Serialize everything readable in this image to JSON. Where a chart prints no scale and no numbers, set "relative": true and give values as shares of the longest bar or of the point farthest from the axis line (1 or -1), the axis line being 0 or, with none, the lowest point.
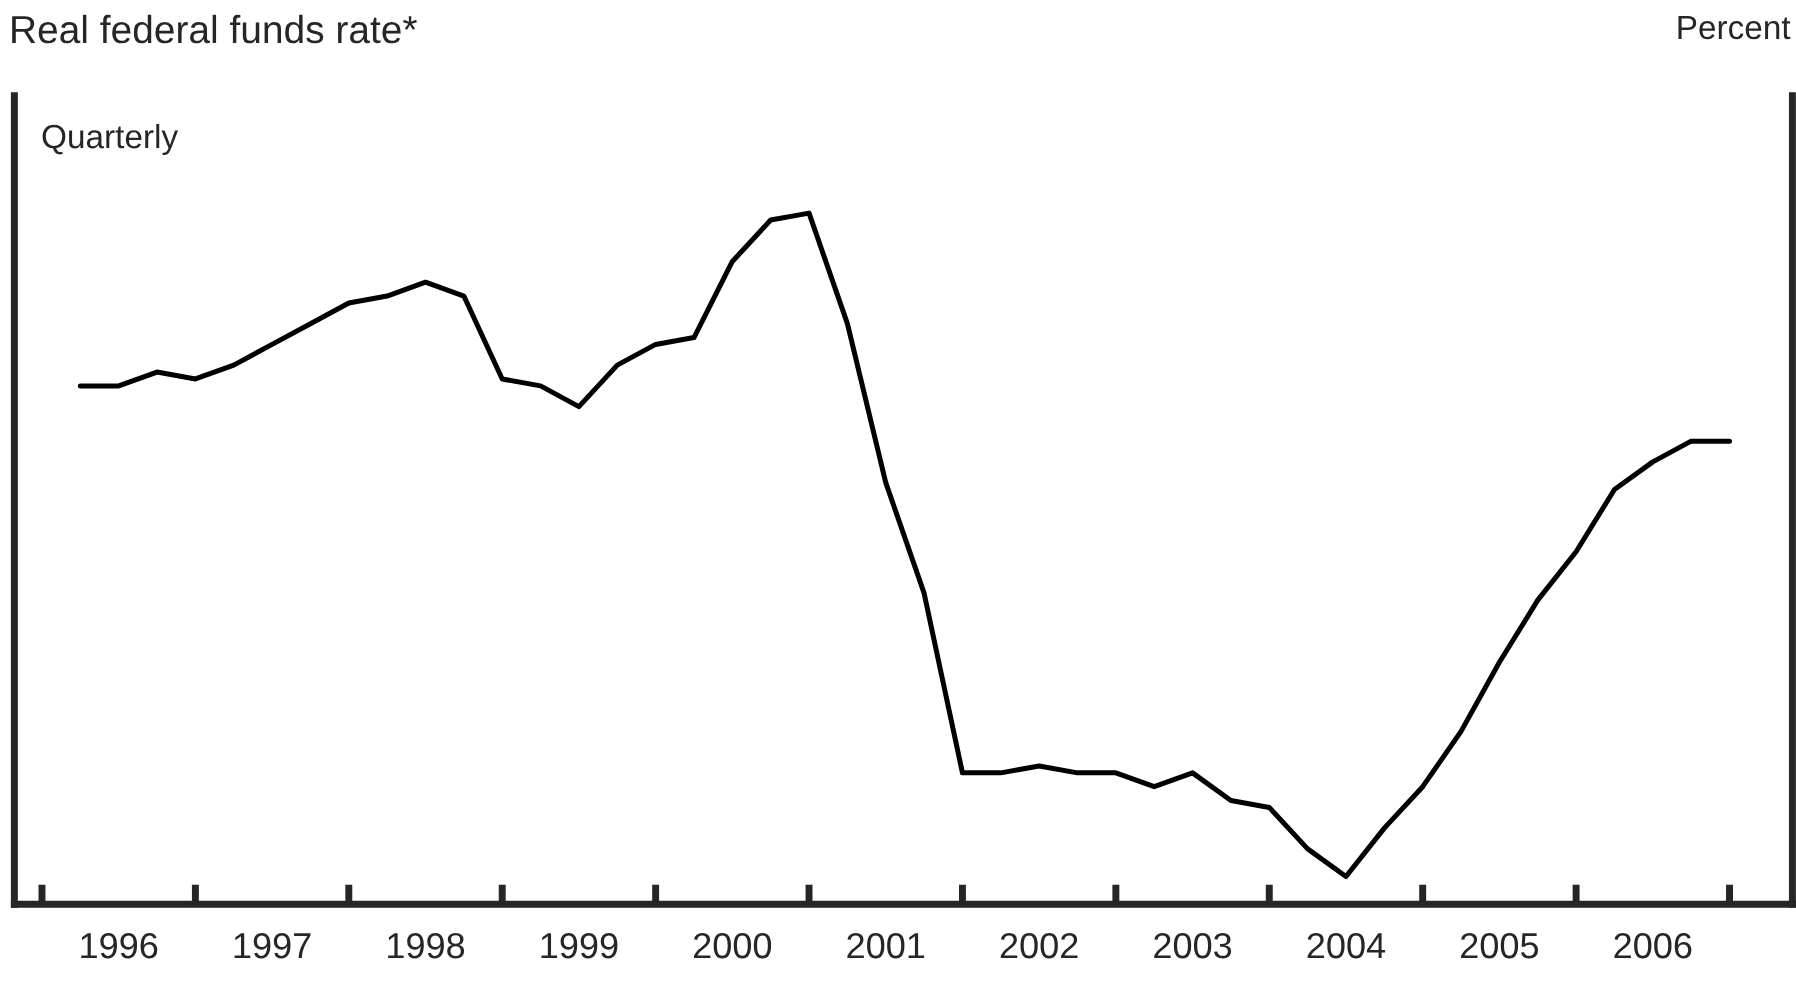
{
  "chart_data": {
    "type": "line",
    "title": "Real federal funds rate*",
    "annotations": [
      "Percent",
      "Quarterly"
    ],
    "relative": true,
    "grid": false,
    "legend": false,
    "x": [
      1996.25,
      1996.5,
      1996.75,
      1997,
      1997.25,
      1997.5,
      1997.75,
      1998,
      1998.25,
      1998.5,
      1998.75,
      1999,
      1999.25,
      1999.5,
      1999.75,
      2000,
      2000.25,
      2000.5,
      2000.75,
      2001,
      2001.25,
      2001.5,
      2001.75,
      2002,
      2002.25,
      2002.5,
      2002.75,
      2003,
      2003.25,
      2003.5,
      2003.75,
      2004,
      2004.25,
      2004.5,
      2004.75,
      2005,
      2005.25,
      2005.5,
      2005.75,
      2006,
      2006.25,
      2006.5,
      2006.75,
      2007
    ],
    "xlim": [
      1995.82,
      2007.41
    ],
    "xticks": [
      {
        "value": 1996,
        "label": null
      },
      {
        "value": 1996.5,
        "label": "1996"
      },
      {
        "value": 1997,
        "label": null
      },
      {
        "value": 1997.5,
        "label": "1997"
      },
      {
        "value": 1998,
        "label": null
      },
      {
        "value": 1998.5,
        "label": "1998"
      },
      {
        "value": 1999,
        "label": null
      },
      {
        "value": 1999.5,
        "label": "1999"
      },
      {
        "value": 2000,
        "label": null
      },
      {
        "value": 2000.5,
        "label": "2000"
      },
      {
        "value": 2001,
        "label": null
      },
      {
        "value": 2001.5,
        "label": "2001"
      },
      {
        "value": 2002,
        "label": null
      },
      {
        "value": 2002.5,
        "label": "2002"
      },
      {
        "value": 2003,
        "label": null
      },
      {
        "value": 2003.5,
        "label": "2003"
      },
      {
        "value": 2004,
        "label": null
      },
      {
        "value": 2004.5,
        "label": "2004"
      },
      {
        "value": 2005,
        "label": null
      },
      {
        "value": 2005.5,
        "label": "2005"
      },
      {
        "value": 2006,
        "label": null
      },
      {
        "value": 2006.5,
        "label": "2006"
      },
      {
        "value": 2007,
        "label": null
      }
    ],
    "series": [
      {
        "color": "#000000",
        "line_style": "solid",
        "marker": "none",
        "values": [
          0.75,
          0.75,
          0.77,
          0.76,
          0.78,
          0.81,
          0.84,
          0.87,
          0.88,
          0.9,
          0.88,
          0.76,
          0.75,
          0.72,
          0.78,
          0.81,
          0.82,
          0.93,
          0.99,
          1.0,
          0.84,
          0.61,
          0.45,
          0.19,
          0.19,
          0.2,
          0.19,
          0.19,
          0.17,
          0.19,
          0.15,
          0.14,
          0.08,
          0.04,
          0.11,
          0.17,
          0.25,
          0.35,
          0.44,
          0.51,
          0.6,
          0.64,
          0.67,
          0.67
        ]
      }
    ]
  }
}
